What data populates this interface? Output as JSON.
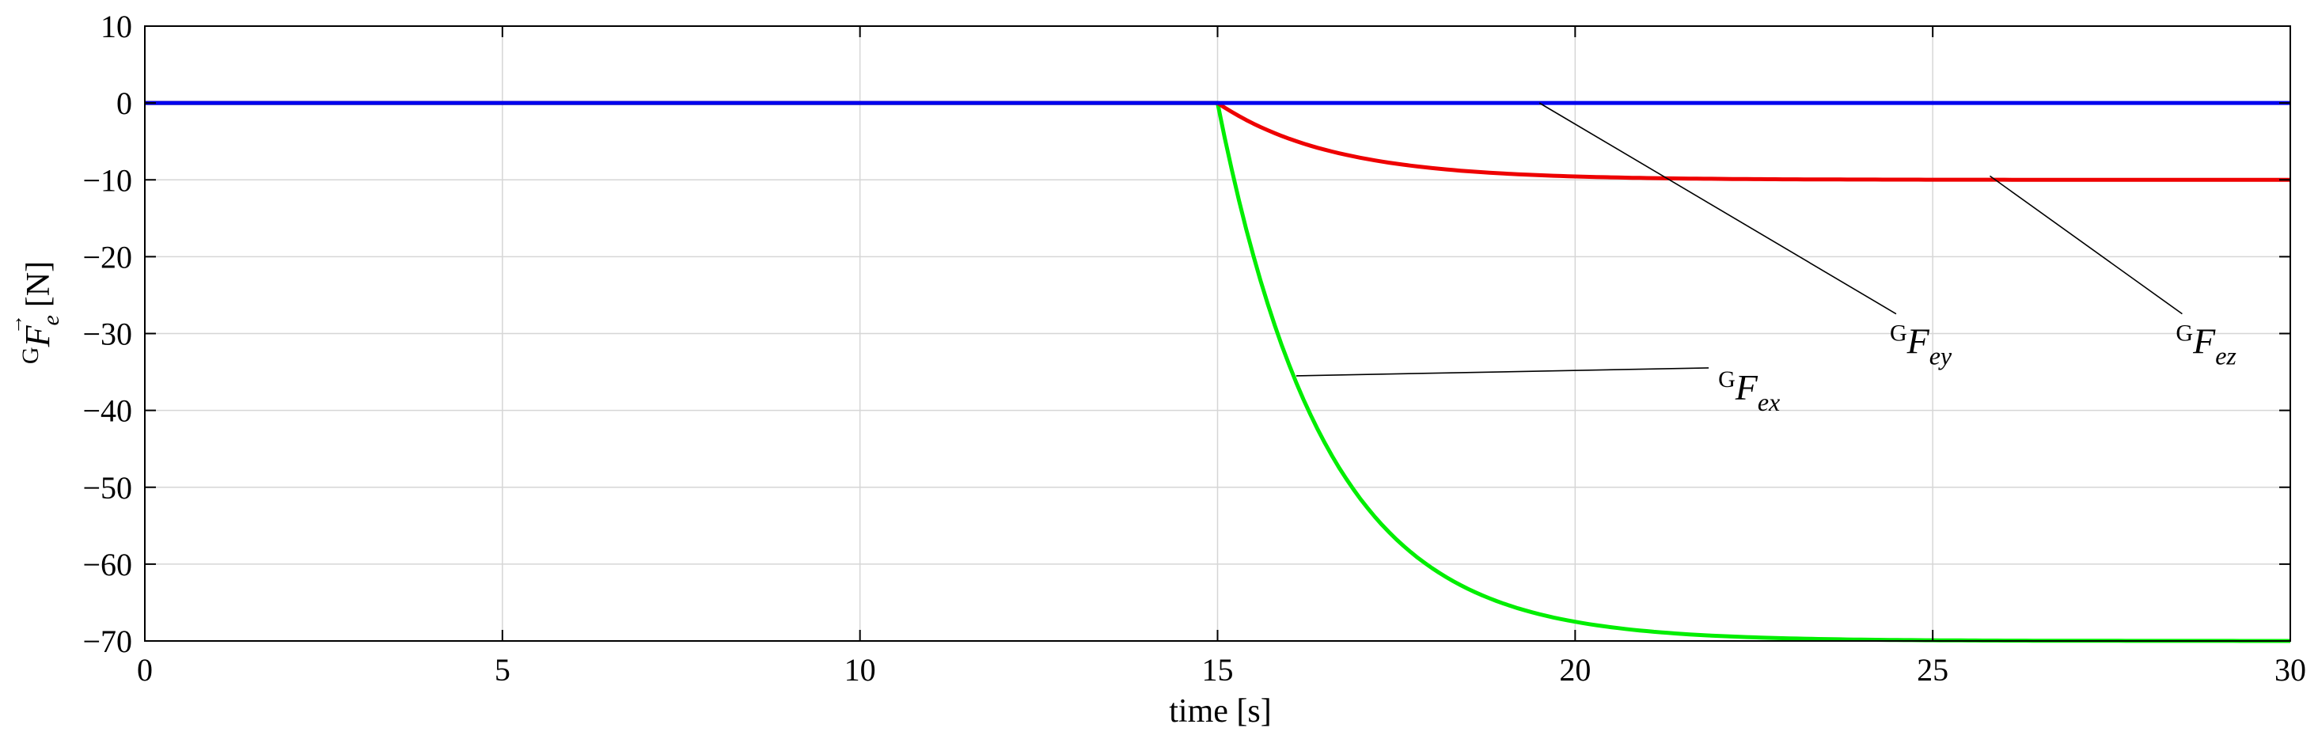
{
  "chart_data": {
    "type": "line",
    "xlabel": "time [s]",
    "ylabel_superscript": "G",
    "ylabel_symbol": "F",
    "ylabel_subscript": "e",
    "ylabel_unit": "[N]",
    "xlim": [
      0,
      30
    ],
    "ylim": [
      -70,
      10
    ],
    "x_ticks": [
      0,
      5,
      10,
      15,
      20,
      25,
      30
    ],
    "x_tick_labels": [
      "0",
      "5",
      "10",
      "15",
      "20",
      "25",
      "30"
    ],
    "y_ticks": [
      10,
      0,
      -10,
      -20,
      -30,
      -40,
      -50,
      -60,
      -70
    ],
    "y_tick_labels": [
      "10",
      "0",
      "−10",
      "−20",
      "−30",
      "−40",
      "−50",
      "−60",
      "−70"
    ],
    "grid": true,
    "colors": {
      "x": "#00ee00",
      "y": "#0000ee",
      "z": "#ee0000"
    },
    "series": [
      {
        "key": "x",
        "label_sup": "G",
        "label_main": "F",
        "label_sub": "ex",
        "color": "#00ee00",
        "x": [
          0,
          15,
          15.5,
          16,
          16.5,
          17,
          17.5,
          18,
          19,
          20,
          21,
          22,
          23,
          24,
          25,
          26,
          27,
          28,
          29,
          30
        ],
        "y": [
          0,
          0,
          -20.2,
          -34.7,
          -45.1,
          -52.6,
          -57.9,
          -61.7,
          -66.3,
          -68.3,
          -69.1,
          -69.5,
          -69.7,
          -69.8,
          -69.9,
          -69.9,
          -69.95,
          -69.97,
          -69.98,
          -70.0
        ]
      },
      {
        "key": "y",
        "label_sup": "G",
        "label_main": "F",
        "label_sub": "ey",
        "color": "#0000ee",
        "x": [
          0,
          15,
          30
        ],
        "y": [
          0,
          0,
          0
        ]
      },
      {
        "key": "z",
        "label_sup": "G",
        "label_main": "F",
        "label_sub": "ez",
        "color": "#ee0000",
        "x": [
          0,
          15,
          15.5,
          16,
          16.5,
          17,
          17.5,
          18,
          19,
          20,
          21,
          22,
          23,
          24,
          25,
          26,
          27,
          28,
          29,
          30
        ],
        "y": [
          0,
          0,
          -2.2,
          -4.0,
          -5.4,
          -6.6,
          -7.4,
          -8.1,
          -8.9,
          -9.4,
          -9.6,
          -9.75,
          -9.8,
          -9.85,
          -9.9,
          -9.92,
          -9.95,
          -9.97,
          -9.98,
          -10.0
        ]
      }
    ],
    "annotations": [
      {
        "series": "x",
        "point": [
          16.1,
          -35.5
        ],
        "label_at": [
          22.0,
          -35.5
        ]
      },
      {
        "series": "y",
        "point": [
          19.5,
          0
        ],
        "label_at": [
          24.4,
          -29.5
        ]
      },
      {
        "series": "z",
        "point": [
          25.8,
          -9.5
        ],
        "label_at": [
          28.4,
          -29.5
        ]
      }
    ]
  }
}
